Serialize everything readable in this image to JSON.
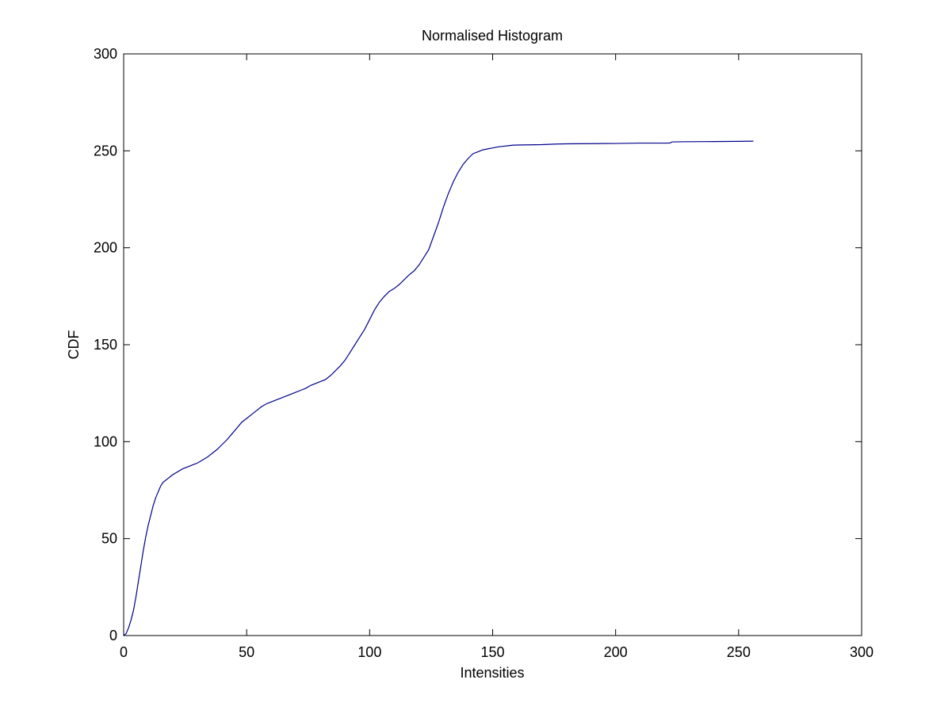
{
  "chart_data": {
    "type": "line",
    "title": "Normalised Histogram",
    "xlabel": "Intensities",
    "ylabel": "CDF",
    "xlim": [
      0,
      300
    ],
    "ylim": [
      0,
      300
    ],
    "x_ticks": [
      0,
      50,
      100,
      150,
      200,
      250,
      300
    ],
    "y_ticks": [
      0,
      50,
      100,
      150,
      200,
      250,
      300
    ],
    "grid": false,
    "legend": "none",
    "line_color": "#00008b",
    "series": [
      {
        "x": [
          0,
          1,
          2,
          3,
          4,
          5,
          6,
          7,
          8,
          9,
          10,
          11,
          12,
          13,
          14,
          15,
          16,
          17,
          18,
          19,
          20,
          22,
          24,
          26,
          28,
          30,
          32,
          34,
          36,
          38,
          40,
          42,
          44,
          46,
          48,
          50,
          52,
          54,
          56,
          58,
          60,
          62,
          64,
          66,
          68,
          70,
          72,
          74,
          76,
          78,
          80,
          82,
          84,
          86,
          88,
          90,
          92,
          94,
          96,
          98,
          100,
          102,
          104,
          106,
          108,
          110,
          112,
          114,
          116,
          118,
          120,
          122,
          124,
          126,
          128,
          130,
          132,
          134,
          136,
          138,
          140,
          142,
          144,
          146,
          148,
          150,
          152,
          154,
          156,
          158,
          160,
          170,
          176,
          180,
          200,
          210,
          222,
          223,
          230,
          240,
          250,
          256
        ],
        "y": [
          0,
          1,
          4,
          8,
          13,
          20,
          28,
          36,
          44,
          51,
          57,
          62,
          67,
          71,
          74,
          77,
          79,
          80,
          81,
          82,
          83,
          84.5,
          86,
          87,
          88,
          89,
          90.5,
          92,
          94,
          96,
          98.5,
          101,
          104,
          107,
          110,
          112,
          114,
          116,
          118,
          119.5,
          120.5,
          121.5,
          122.5,
          123.5,
          124.5,
          125.5,
          126.5,
          127.5,
          129,
          130,
          131,
          132,
          134,
          136.5,
          139,
          142,
          146,
          150,
          154,
          158,
          163,
          168,
          172,
          175,
          177.5,
          179,
          181,
          183.5,
          186,
          188,
          191,
          195,
          199,
          206,
          213,
          221,
          228,
          234,
          239,
          243,
          246,
          248.5,
          249.5,
          250.5,
          251,
          251.5,
          252,
          252.3,
          252.6,
          252.9,
          253,
          253.2,
          253.5,
          253.6,
          253.8,
          254,
          254,
          254.6,
          254.7,
          254.8,
          254.9,
          255
        ]
      }
    ]
  }
}
